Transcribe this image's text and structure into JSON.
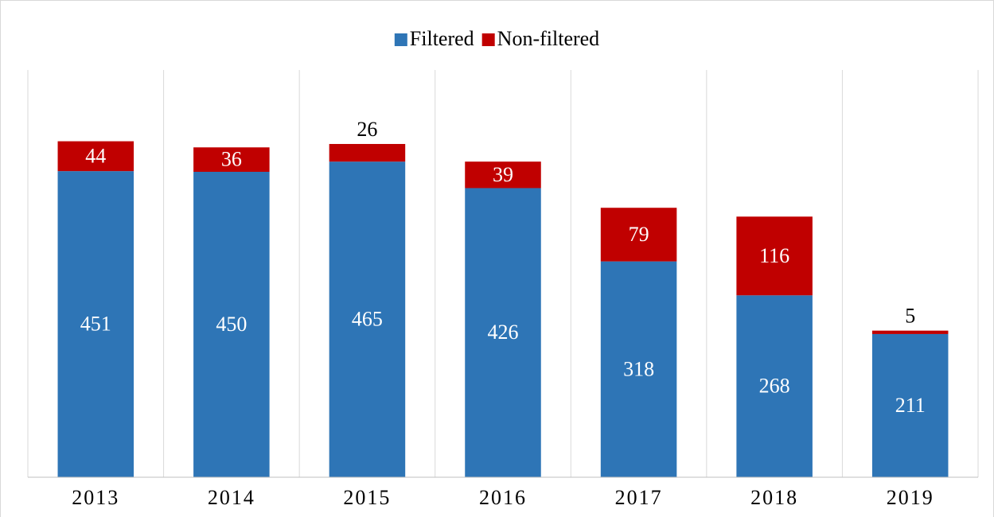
{
  "chart_data": {
    "type": "stacked_bar",
    "categories": [
      "2013",
      "2014",
      "2015",
      "2016",
      "2017",
      "2018",
      "2019"
    ],
    "series": [
      {
        "name": "Filtered",
        "color": "#2e75b6",
        "values": [
          451,
          450,
          465,
          426,
          318,
          268,
          211
        ]
      },
      {
        "name": "Non-filtered",
        "color": "#c00000",
        "values": [
          44,
          36,
          26,
          39,
          79,
          116,
          5
        ]
      }
    ],
    "ylim": [
      0,
      600
    ],
    "legend": "top"
  }
}
